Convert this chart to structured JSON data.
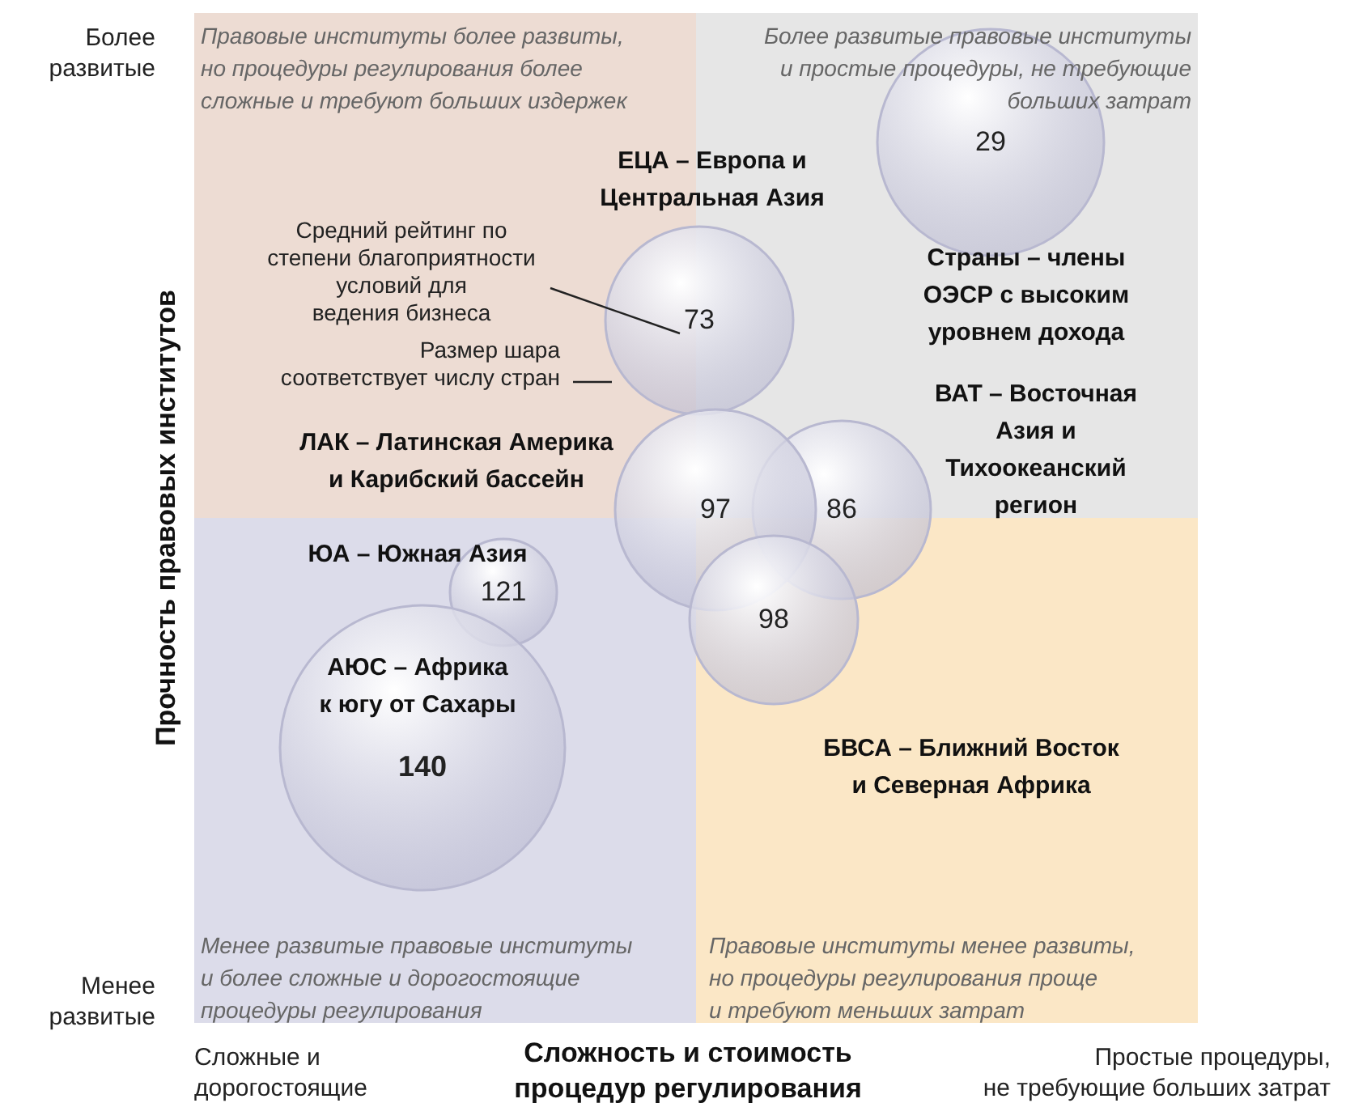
{
  "chart_data": {
    "type": "other",
    "xlabel": "Сложность и стоимость\nпроцедур регулирования",
    "ylabel": "Прочность правовых институтов",
    "categories": [
      "Страны – члены\nОЭСР с высоким\nуровнем дохода",
      "ЕЦА – Европа и\nЦентральная Азия",
      "ВАТ – Восточная\nАзия и\nТихоокеанский\nрегион",
      "ЛАК – Латинская Америка\nи Карибский бассейн",
      "БВСА – Ближний Восток\nи Северная Африка",
      "ЮА – Южная Азия",
      "АЮС – Африка\nк югу от Сахары"
    ],
    "values": [
      29,
      73,
      86,
      97,
      98,
      121,
      140
    ],
    "colors": [
      "#b8b8d0",
      "#b8b8d0",
      "#b8b8d0",
      "#b8b8d0",
      "#b8b8d0",
      "#b8b8d0",
      "#b8b8d0"
    ],
    "data_labels": true,
    "annotations": [
      "Правовые институты более развиты,\nно процедуры регулирования более\nсложные и требуют больших издержек",
      "Более развитые правовые институты\nи простые процедуры, не требующие\nбольших затрат",
      "Менее развитые правовые институты\nи более сложные и дорогостоящие\nпроцедуры регулирования",
      "Правовые институты менее развиты,\nно процедуры регулирования проще\nи требуют меньших затрат",
      "Средний рейтинг по\nстепени благоприятности\nусловий для\nведения бизнеса",
      "Размер шара\nсоответствует числу стран",
      "Более\nразвитые",
      "Менее\nразвитые",
      "Сложные и\nдорогостоящие",
      "Простые процедуры,\nне требующие больших затрат"
    ]
  }
}
